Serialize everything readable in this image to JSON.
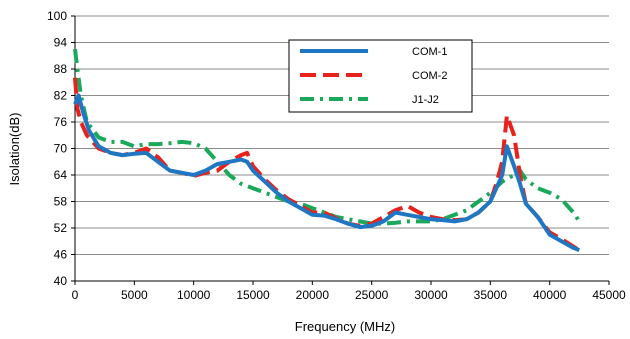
{
  "chart_data": {
    "type": "line",
    "title": "",
    "xlabel": "Frequency (MHz)",
    "ylabel": "Isolation(dB)",
    "xlim": [
      0,
      45000
    ],
    "ylim": [
      40,
      100
    ],
    "xticks": [
      0,
      5000,
      10000,
      15000,
      20000,
      25000,
      30000,
      35000,
      40000,
      45000
    ],
    "yticks": [
      40,
      46,
      52,
      58,
      64,
      70,
      76,
      82,
      88,
      94,
      100
    ],
    "grid": "horizontal",
    "legend_position": "top-right",
    "series": [
      {
        "name": "COM-1",
        "color": "#1f77c4",
        "style": "solid",
        "x": [
          0,
          300,
          700,
          1200,
          2000,
          3000,
          4000,
          5000,
          6000,
          7000,
          8000,
          9000,
          10000,
          11000,
          12000,
          13000,
          14000,
          14500,
          15000,
          16000,
          17000,
          18000,
          19000,
          20000,
          21000,
          22000,
          23000,
          24000,
          25000,
          26000,
          27000,
          28000,
          29000,
          30000,
          31000,
          32000,
          33000,
          34000,
          35000,
          35500,
          36000,
          36400,
          37000,
          37500,
          38000,
          39000,
          40000,
          41000,
          42000,
          42500
        ],
        "y": [
          80,
          82,
          78,
          74,
          70.5,
          69,
          68.5,
          68.8,
          69,
          67,
          65,
          64.5,
          64,
          65,
          66.5,
          67,
          67.5,
          67,
          65,
          62.5,
          60,
          58,
          56.5,
          55,
          54.8,
          54,
          53,
          52.2,
          52.5,
          53.5,
          55.5,
          55,
          54.5,
          54,
          53.8,
          53.5,
          54,
          55.5,
          58,
          61,
          64,
          70.5,
          66,
          62,
          57.5,
          54.5,
          50.5,
          49,
          47.5,
          47
        ]
      },
      {
        "name": "COM-2",
        "color": "#e8211a",
        "style": "dashed",
        "x": [
          0,
          200,
          500,
          1000,
          2000,
          3000,
          4000,
          5000,
          6000,
          7000,
          8000,
          9000,
          10000,
          11000,
          12000,
          13000,
          14000,
          14500,
          15000,
          16000,
          17000,
          18000,
          19000,
          20000,
          21000,
          22000,
          23000,
          24000,
          25000,
          26000,
          27000,
          28000,
          29000,
          30000,
          31000,
          32000,
          33000,
          34000,
          35000,
          35500,
          36000,
          36400,
          37000,
          37500,
          38000,
          39000,
          40000,
          41000,
          42000,
          42500
        ],
        "y": [
          86,
          79,
          76,
          73,
          70,
          69,
          68.5,
          69,
          70,
          68,
          65,
          64.5,
          63.8,
          64.5,
          65,
          67,
          68.5,
          69,
          66,
          63,
          60.5,
          58.5,
          57,
          55.5,
          55.5,
          54.2,
          53,
          52.5,
          53,
          54.5,
          56,
          57,
          55.5,
          54.5,
          54,
          53.8,
          54,
          55.5,
          58,
          62,
          67,
          77.5,
          73,
          64,
          57.5,
          54.5,
          51,
          49.5,
          47.8,
          47
        ]
      },
      {
        "name": "J1-J2",
        "color": "#1aa85a",
        "style": "dashdot",
        "x": [
          0,
          200,
          500,
          1000,
          2000,
          3000,
          4000,
          5000,
          6000,
          7000,
          8000,
          9000,
          10000,
          11000,
          12000,
          13000,
          14000,
          15000,
          16000,
          17000,
          18000,
          19000,
          20000,
          21000,
          22000,
          23000,
          24000,
          25000,
          26000,
          27000,
          28000,
          29000,
          30000,
          31000,
          32000,
          33000,
          34000,
          35000,
          36000,
          37000,
          37500,
          38000,
          39000,
          40000,
          41000,
          42000,
          42500
        ],
        "y": [
          92.5,
          88,
          82,
          76,
          72.5,
          71.5,
          71.5,
          70.5,
          71,
          71,
          71.2,
          71.5,
          71.2,
          70,
          67,
          64,
          62,
          61,
          60,
          59,
          58,
          57.5,
          56.5,
          55.5,
          54.5,
          54,
          53.5,
          53,
          53,
          53.2,
          53.5,
          53.5,
          53.5,
          54,
          55,
          56,
          58,
          60,
          62.5,
          64,
          65,
          63,
          61,
          60,
          58.5,
          55.5,
          53.5
        ]
      }
    ]
  }
}
